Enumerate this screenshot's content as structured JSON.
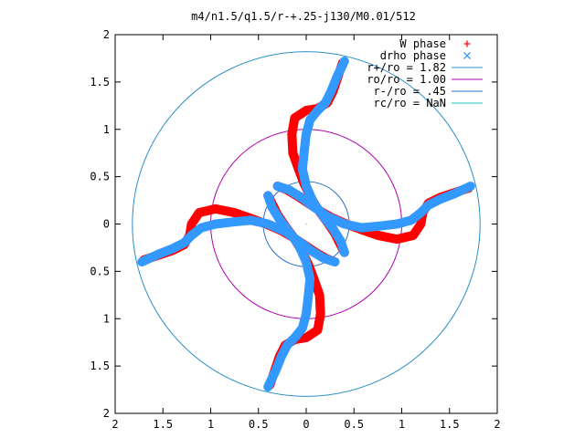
{
  "chart_data": {
    "type": "scatter",
    "title": "m4/n1.5/q1.5/r-+.25-j130/M0.01/512",
    "xlabel": "",
    "ylabel": "",
    "xlim": [
      -2,
      2
    ],
    "ylim": [
      -2,
      2
    ],
    "grid": false,
    "legend_position": "top-right",
    "x_ticks": [
      -2,
      -1.5,
      -1,
      -0.5,
      0,
      0.5,
      1,
      1.5,
      2
    ],
    "y_ticks": [
      -2,
      -1.5,
      -1,
      -0.5,
      0,
      0.5,
      1,
      1.5,
      2
    ],
    "x_tick_labels": [
      "2",
      "1.5",
      "1",
      "0.5",
      "0",
      "0.5",
      "1",
      "1.5",
      "2"
    ],
    "y_tick_labels": [
      "2",
      "1.5",
      "1",
      "0.5",
      "0",
      "0.5",
      "1",
      "1.5",
      "2"
    ],
    "series": [
      {
        "name": "W phase",
        "marker": "+",
        "color": "#ff0000",
        "arms": [
          [
            [
              0.4,
              -0.3
            ],
            [
              0.35,
              -0.2
            ],
            [
              0.3,
              -0.1
            ],
            [
              0.22,
              0.02
            ],
            [
              0.14,
              0.13
            ],
            [
              0.06,
              0.26
            ],
            [
              -0.02,
              0.42
            ],
            [
              -0.08,
              0.58
            ],
            [
              -0.14,
              0.75
            ],
            [
              -0.15,
              0.95
            ],
            [
              -0.12,
              1.12
            ],
            [
              0.0,
              1.2
            ],
            [
              0.12,
              1.22
            ],
            [
              0.22,
              1.28
            ],
            [
              0.28,
              1.4
            ],
            [
              0.33,
              1.55
            ],
            [
              0.38,
              1.7
            ]
          ],
          [
            [
              0.3,
              -0.4
            ],
            [
              0.2,
              -0.36
            ],
            [
              0.1,
              -0.3
            ],
            [
              -0.02,
              -0.22
            ],
            [
              -0.14,
              -0.14
            ],
            [
              -0.26,
              -0.07
            ],
            [
              -0.42,
              0.0
            ],
            [
              -0.58,
              0.06
            ],
            [
              -0.75,
              0.12
            ],
            [
              -0.95,
              0.16
            ],
            [
              -1.12,
              0.12
            ],
            [
              -1.2,
              0.0
            ],
            [
              -1.22,
              -0.12
            ],
            [
              -1.28,
              -0.22
            ],
            [
              -1.4,
              -0.28
            ],
            [
              -1.55,
              -0.33
            ],
            [
              -1.7,
              -0.38
            ]
          ],
          [
            [
              -0.4,
              0.3
            ],
            [
              -0.35,
              0.2
            ],
            [
              -0.3,
              0.1
            ],
            [
              -0.22,
              -0.02
            ],
            [
              -0.14,
              -0.13
            ],
            [
              -0.06,
              -0.26
            ],
            [
              0.02,
              -0.42
            ],
            [
              0.08,
              -0.58
            ],
            [
              0.14,
              -0.75
            ],
            [
              0.15,
              -0.95
            ],
            [
              0.12,
              -1.12
            ],
            [
              0.0,
              -1.2
            ],
            [
              -0.12,
              -1.22
            ],
            [
              -0.22,
              -1.28
            ],
            [
              -0.28,
              -1.4
            ],
            [
              -0.33,
              -1.55
            ],
            [
              -0.38,
              -1.7
            ]
          ],
          [
            [
              -0.3,
              0.4
            ],
            [
              -0.2,
              0.36
            ],
            [
              -0.1,
              0.3
            ],
            [
              0.02,
              0.22
            ],
            [
              0.14,
              0.14
            ],
            [
              0.26,
              0.07
            ],
            [
              0.42,
              0.0
            ],
            [
              0.58,
              -0.06
            ],
            [
              0.75,
              -0.12
            ],
            [
              0.95,
              -0.16
            ],
            [
              1.12,
              -0.12
            ],
            [
              1.2,
              0.0
            ],
            [
              1.22,
              0.12
            ],
            [
              1.28,
              0.22
            ],
            [
              1.4,
              0.28
            ],
            [
              1.55,
              0.33
            ],
            [
              1.7,
              0.38
            ]
          ]
        ]
      },
      {
        "name": "drho phase",
        "marker": "x",
        "color": "#3399ff",
        "arms": [
          [
            [
              0.4,
              -0.3
            ],
            [
              0.36,
              -0.18
            ],
            [
              0.28,
              -0.05
            ],
            [
              0.18,
              0.08
            ],
            [
              0.08,
              0.22
            ],
            [
              0.0,
              0.4
            ],
            [
              -0.04,
              0.58
            ],
            [
              -0.02,
              0.78
            ],
            [
              0.0,
              0.95
            ],
            [
              0.04,
              1.1
            ],
            [
              0.12,
              1.2
            ],
            [
              0.2,
              1.28
            ],
            [
              0.26,
              1.4
            ],
            [
              0.32,
              1.55
            ],
            [
              0.4,
              1.72
            ]
          ],
          [
            [
              0.3,
              -0.4
            ],
            [
              0.18,
              -0.36
            ],
            [
              0.05,
              -0.28
            ],
            [
              -0.08,
              -0.18
            ],
            [
              -0.22,
              -0.08
            ],
            [
              -0.4,
              0.0
            ],
            [
              -0.58,
              0.04
            ],
            [
              -0.78,
              0.02
            ],
            [
              -0.95,
              0.0
            ],
            [
              -1.1,
              -0.04
            ],
            [
              -1.2,
              -0.12
            ],
            [
              -1.28,
              -0.2
            ],
            [
              -1.4,
              -0.26
            ],
            [
              -1.55,
              -0.32
            ],
            [
              -1.72,
              -0.4
            ]
          ],
          [
            [
              -0.4,
              0.3
            ],
            [
              -0.36,
              0.18
            ],
            [
              -0.28,
              0.05
            ],
            [
              -0.18,
              -0.08
            ],
            [
              -0.08,
              -0.22
            ],
            [
              0.0,
              -0.4
            ],
            [
              0.04,
              -0.58
            ],
            [
              0.02,
              -0.78
            ],
            [
              0.0,
              -0.95
            ],
            [
              -0.04,
              -1.1
            ],
            [
              -0.12,
              -1.2
            ],
            [
              -0.2,
              -1.28
            ],
            [
              -0.26,
              -1.4
            ],
            [
              -0.32,
              -1.55
            ],
            [
              -0.4,
              -1.72
            ]
          ],
          [
            [
              -0.3,
              0.4
            ],
            [
              -0.18,
              0.36
            ],
            [
              -0.05,
              0.28
            ],
            [
              0.08,
              0.18
            ],
            [
              0.22,
              0.08
            ],
            [
              0.4,
              0.0
            ],
            [
              0.58,
              -0.04
            ],
            [
              0.78,
              -0.02
            ],
            [
              0.95,
              0.0
            ],
            [
              1.1,
              0.04
            ],
            [
              1.2,
              0.12
            ],
            [
              1.28,
              0.2
            ],
            [
              1.4,
              0.26
            ],
            [
              1.55,
              0.32
            ],
            [
              1.72,
              0.4
            ]
          ]
        ]
      },
      {
        "name": "r+/ro = 1.82",
        "type": "circle",
        "radius": 1.82,
        "color": "#2a8fc4"
      },
      {
        "name": "ro/ro = 1.00",
        "type": "circle",
        "radius": 1.0,
        "color": "#b000b0"
      },
      {
        "name": "r-/ro = .45",
        "type": "circle",
        "radius": 0.45,
        "color": "#2a72c4"
      },
      {
        "name": "rc/ro = NaN",
        "type": "circle",
        "radius": null,
        "color": "#20c0c0"
      }
    ],
    "legend": [
      {
        "label": "W phase",
        "symbol": "+",
        "color": "#ff0000"
      },
      {
        "label": "drho phase",
        "symbol": "x",
        "color": "#3399ff"
      },
      {
        "label": "r+/ro = 1.82",
        "symbol": "line",
        "color": "#2a8fc4"
      },
      {
        "label": "ro/ro = 1.00",
        "symbol": "line",
        "color": "#b000b0"
      },
      {
        "label": "r-/ro = .45",
        "symbol": "line",
        "color": "#2a72c4"
      },
      {
        "label": "rc/ro = NaN",
        "symbol": "line",
        "color": "#20c0c0"
      }
    ]
  }
}
